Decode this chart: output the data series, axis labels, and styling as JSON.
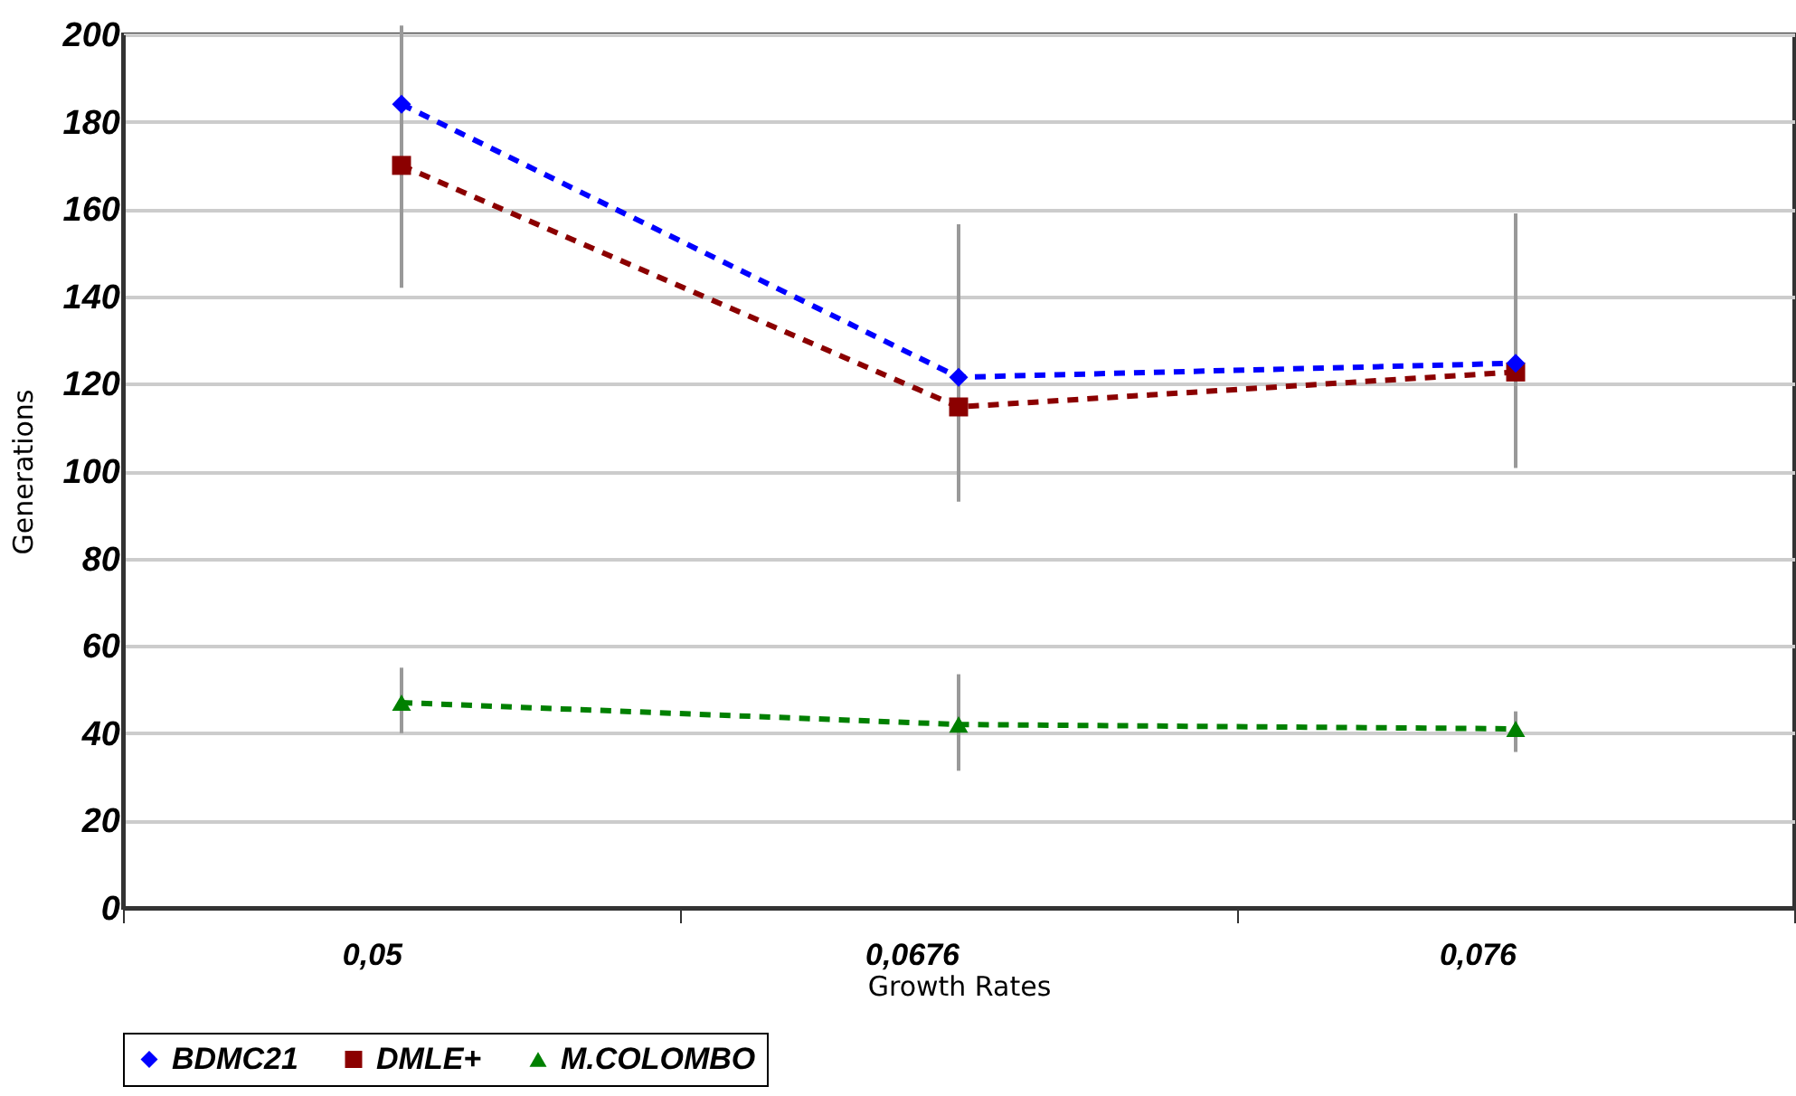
{
  "chart_data": {
    "type": "line",
    "xlabel": "Growth Rates",
    "ylabel": "Generations",
    "categories": [
      "0,05",
      "0,0676",
      "0,076"
    ],
    "series": [
      {
        "name": "BDMC21",
        "color": "#0000ff",
        "values": [
          184,
          121.5,
          124.7
        ],
        "marker": "diamond"
      },
      {
        "name": "DMLE+",
        "color": "#8b0000",
        "values": [
          170,
          114.7,
          122.7
        ],
        "marker": "square",
        "errors": [
          [
            142,
            202
          ],
          [
            93,
            156.5
          ],
          [
            100.7,
            159
          ]
        ]
      },
      {
        "name": "M.COLOMBO",
        "color": "#008000",
        "values": [
          47,
          42,
          41
        ],
        "marker": "triangle",
        "errors": [
          [
            40,
            55
          ],
          [
            31.4,
            53.5
          ],
          [
            35.7,
            45
          ]
        ]
      }
    ],
    "ylim": [
      0,
      200
    ],
    "yticks": [
      0,
      20,
      40,
      60,
      80,
      100,
      120,
      140,
      160,
      180,
      200
    ],
    "grid": "y",
    "legend": "bottom",
    "line_style": "dashed"
  }
}
